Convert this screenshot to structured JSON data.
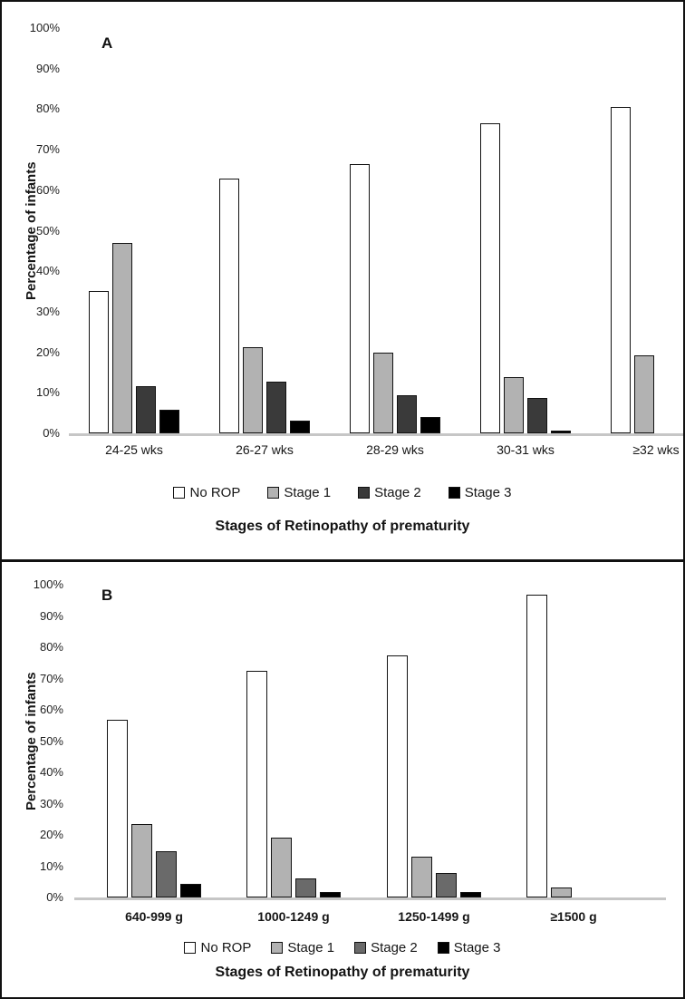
{
  "figure": {
    "description_colors": {
      "no_rop_fill": "#ffffff",
      "stage1_fill": "#b2b2b2",
      "stage2_fill_panel_a": "#3a3a3a",
      "stage2_fill_panel_b": "#6a6a6a",
      "stage3_fill": "#000000",
      "bar_border": "#121212",
      "axis_baseline": "#c6c6c6",
      "panel_border": "#111111"
    }
  },
  "chart_data": [
    {
      "type": "bar",
      "panel_label": "A",
      "ylabel": "Percentage of infants",
      "xlabel": "Stages of Retinopathy of prematurity",
      "ylim": [
        0,
        100
      ],
      "ytick_labels": [
        "100%",
        "90%",
        "80%",
        "70%",
        "60%",
        "50%",
        "40%",
        "30%",
        "20%",
        "10%",
        "0%"
      ],
      "grid": false,
      "legend_position": "bottom",
      "categories": [
        "24-25 wks",
        "26-27 wks",
        "28-29 wks",
        "30-31 wks",
        "≥32 wks"
      ],
      "series": [
        {
          "name": "No ROP",
          "color": "#ffffff",
          "values": [
            35.2,
            62.9,
            66.4,
            76.6,
            80.6
          ]
        },
        {
          "name": "Stage 1",
          "color": "#b2b2b2",
          "values": [
            47.0,
            21.2,
            19.9,
            13.8,
            19.2
          ]
        },
        {
          "name": "Stage 2",
          "color": "#3a3a3a",
          "values": [
            11.7,
            12.7,
            9.3,
            8.7,
            0
          ]
        },
        {
          "name": "Stage 3",
          "color": "#000000",
          "values": [
            5.8,
            3.1,
            4.0,
            0.6,
            0
          ]
        }
      ]
    },
    {
      "type": "bar",
      "panel_label": "B",
      "ylabel": "Percentage of infants",
      "xlabel": "Stages of Retinopathy of prematurity",
      "ylim": [
        0,
        100
      ],
      "ytick_labels": [
        "100%",
        "90%",
        "80%",
        "70%",
        "60%",
        "50%",
        "40%",
        "30%",
        "20%",
        "10%",
        "0%"
      ],
      "grid": false,
      "legend_position": "bottom",
      "categories": [
        "640-999 g",
        "1000-1249 g",
        "1250-1499 g",
        "≥1500 g"
      ],
      "series": [
        {
          "name": "No ROP",
          "color": "#ffffff",
          "values": [
            56.7,
            72.4,
            77.3,
            96.7
          ]
        },
        {
          "name": "Stage 1",
          "color": "#b2b2b2",
          "values": [
            23.6,
            19.2,
            13.0,
            3.1
          ]
        },
        {
          "name": "Stage 2",
          "color": "#6a6a6a",
          "values": [
            14.8,
            6.2,
            7.7,
            0
          ]
        },
        {
          "name": "Stage 3",
          "color": "#000000",
          "values": [
            4.3,
            1.8,
            1.6,
            0
          ]
        }
      ]
    }
  ]
}
